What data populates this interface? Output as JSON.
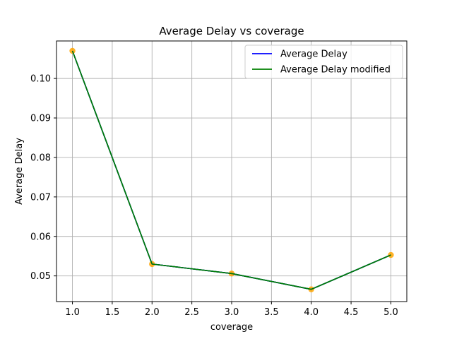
{
  "chart_data": {
    "type": "line",
    "title": "Average Delay vs coverage",
    "xlabel": "coverage",
    "ylabel": "Average Delay",
    "xlim": [
      0.8,
      5.2
    ],
    "ylim": [
      0.0435,
      0.1095
    ],
    "xticks": [
      1.0,
      1.5,
      2.0,
      2.5,
      3.0,
      3.5,
      4.0,
      4.5,
      5.0
    ],
    "xtick_labels": [
      "1.0",
      "1.5",
      "2.0",
      "2.5",
      "3.0",
      "3.5",
      "4.0",
      "4.5",
      "5.0"
    ],
    "yticks": [
      0.05,
      0.06,
      0.07,
      0.08,
      0.09,
      0.1
    ],
    "ytick_labels": [
      "0.05",
      "0.06",
      "0.07",
      "0.08",
      "0.09",
      "0.10"
    ],
    "grid": true,
    "legend": "top-right",
    "x": [
      1.0,
      2.0,
      3.0,
      4.0,
      5.0
    ],
    "series": [
      {
        "name": "Average Delay",
        "color": "#0000ff",
        "values": [
          0.107,
          0.053,
          0.0506,
          0.0466,
          0.0553
        ]
      },
      {
        "name": "Average Delay modified",
        "color": "#008000",
        "values": [
          0.107,
          0.053,
          0.0506,
          0.0466,
          0.0553
        ]
      }
    ],
    "markers": {
      "color": "#ffa500",
      "values": [
        0.107,
        0.053,
        0.0506,
        0.0466,
        0.0553
      ]
    }
  }
}
